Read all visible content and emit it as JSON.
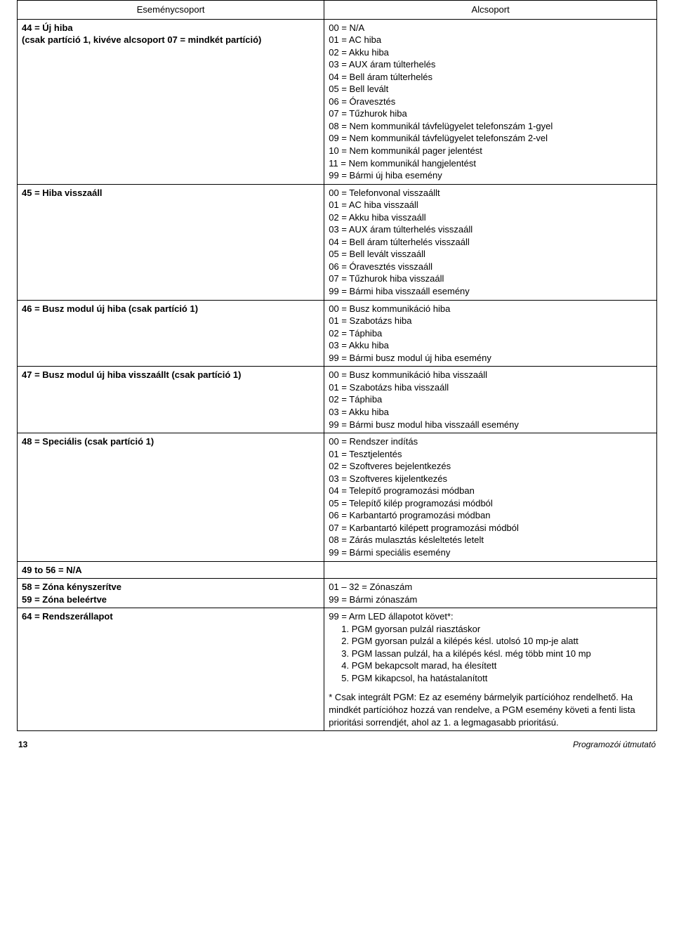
{
  "header": {
    "left": "Eseménycsoport",
    "right": "Alcsoport"
  },
  "rows": [
    {
      "left": [
        "44 = Új hiba",
        "(csak partíció 1, kivéve alcsoport 07 = mindkét partíció)"
      ],
      "right": [
        "00 = N/A",
        "01 = AC hiba",
        "02 = Akku hiba",
        "03 = AUX áram túlterhelés",
        "04 = Bell áram túlterhelés",
        "05 = Bell levált",
        "06 = Óravesztés",
        "07 = Tűzhurok hiba",
        "08 = Nem kommunikál távfelügyelet telefonszám 1-gyel",
        "09 = Nem kommunikál távfelügyelet telefonszám 2-vel",
        "10 = Nem kommunikál pager jelentést",
        "11 = Nem kommunikál hangjelentést",
        "99 = Bármi új hiba esemény"
      ]
    },
    {
      "left": [
        "45 = Hiba visszaáll"
      ],
      "right": [
        "00 = Telefonvonal visszaállt",
        "01 = AC hiba visszaáll",
        "02 = Akku hiba visszaáll",
        "03 = AUX áram túlterhelés visszaáll",
        "04 = Bell áram túlterhelés visszaáll",
        "05 = Bell levált visszaáll",
        "06 = Óravesztés visszaáll",
        "07 = Tűzhurok hiba visszaáll",
        "99 = Bármi hiba visszaáll esemény"
      ]
    },
    {
      "left": [
        "46 = Busz modul új hiba (csak partíció 1)"
      ],
      "right": [
        "00 = Busz kommunikáció hiba",
        "01 = Szabotázs hiba",
        "02 = Táphiba",
        "03 = Akku hiba",
        "99 = Bármi busz modul új hiba esemény"
      ]
    },
    {
      "left": [
        "47 = Busz modul új hiba visszaállt (csak partíció 1)"
      ],
      "right": [
        "00 = Busz kommunikáció hiba  visszaáll",
        "01 = Szabotázs hiba visszaáll",
        "02 = Táphiba",
        "03 = Akku hiba",
        "99 = Bármi busz modul hiba visszaáll esemény"
      ]
    },
    {
      "left": [
        "48 = Speciális (csak partíció 1)"
      ],
      "right": [
        "00 = Rendszer indítás",
        "01 = Tesztjelentés",
        "02 = Szoftveres bejelentkezés",
        "03 = Szoftveres kijelentkezés",
        "04 = Telepítő programozási módban",
        "05 = Telepítő kilép programozási módból",
        "06 = Karbantartó programozási módban",
        "07 = Karbantartó kilépett programozási módból",
        "08 = Zárás mulasztás késleltetés letelt",
        "99 = Bármi speciális esemény"
      ]
    },
    {
      "left": [
        "49 to 56 = N/A"
      ],
      "right": []
    },
    {
      "left": [
        "58 = Zóna kényszerítve",
        "59 = Zóna beleértve"
      ],
      "right": [
        "01 – 32 = Zónaszám",
        "99 = Bármi zónaszám"
      ]
    },
    {
      "left": [
        "64 = Rendszerállapot"
      ],
      "right_prefix": "99 = Arm LED állapotot követ*:",
      "right_numbered": [
        "1. PGM gyorsan pulzál riasztáskor",
        "2. PGM gyorsan pulzál a kilépés késl. utolsó 10 mp-je alatt",
        "3. PGM lassan pulzál, ha a kilépés késl. még több mint 10 mp",
        "4. PGM bekapcsolt marad, ha élesített",
        "5. PGM kikapcsol, ha hatástalanított"
      ],
      "right_note": "* Csak integrált PGM: Ez az esemény bármelyik partícióhoz rendelhető. Ha mindkét partícióhoz hozzá van rendelve, a PGM esemény követi a fenti lista prioritási sorrendjét, ahol az 1. a legmagasabb prioritású."
    }
  ],
  "footer": {
    "page": "13",
    "doc": "Programozói útmutató"
  }
}
